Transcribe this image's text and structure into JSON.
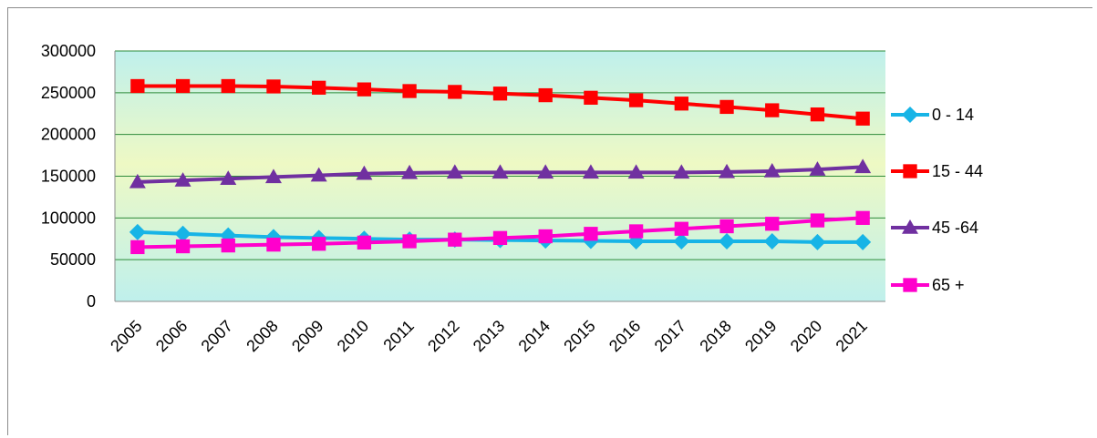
{
  "chart_data": {
    "type": "line",
    "title": "",
    "xlabel": "",
    "ylabel": "",
    "ylim": [
      0,
      300000
    ],
    "yticks": [
      "0",
      "50000",
      "100000",
      "150000",
      "200000",
      "250000",
      "300000"
    ],
    "categories": [
      "2005",
      "2006",
      "2007",
      "2008",
      "2009",
      "2010",
      "2011",
      "2012",
      "2013",
      "2014",
      "2015",
      "2016",
      "2017",
      "2018",
      "2019",
      "2020",
      "2021"
    ],
    "series": [
      {
        "name": "0 - 14",
        "color": "#17b4e6",
        "marker": "diamond",
        "values": [
          83000,
          81000,
          79000,
          77000,
          76000,
          75000,
          74000,
          74000,
          73500,
          73000,
          72500,
          72000,
          72000,
          72000,
          72000,
          71000,
          71000
        ]
      },
      {
        "name": "15 - 44",
        "color": "#ff0000",
        "marker": "square",
        "values": [
          258000,
          258000,
          258000,
          257500,
          256000,
          254000,
          252000,
          251000,
          249000,
          247000,
          244000,
          241000,
          237000,
          233000,
          229000,
          224000,
          219000
        ]
      },
      {
        "name": "45 -64",
        "color": "#7030a0",
        "marker": "triangle",
        "values": [
          143000,
          145000,
          147000,
          149000,
          151000,
          153000,
          154000,
          154500,
          154500,
          154500,
          154500,
          154500,
          154500,
          155000,
          156000,
          158000,
          161000
        ]
      },
      {
        "name": "65 +",
        "color": "#ff00cc",
        "marker": "square",
        "values": [
          65000,
          66000,
          67000,
          68000,
          69000,
          70500,
          72000,
          74000,
          76000,
          78000,
          81000,
          84000,
          87000,
          90000,
          93000,
          97000,
          100000
        ]
      }
    ],
    "grid": true,
    "legend_position": "right"
  },
  "colors": {
    "plot_bg_top": "#bff0ec",
    "plot_bg_mid": "#eef9c4",
    "plot_bg_bottom": "#bff0ec",
    "gridline": "#2e8b3a"
  }
}
